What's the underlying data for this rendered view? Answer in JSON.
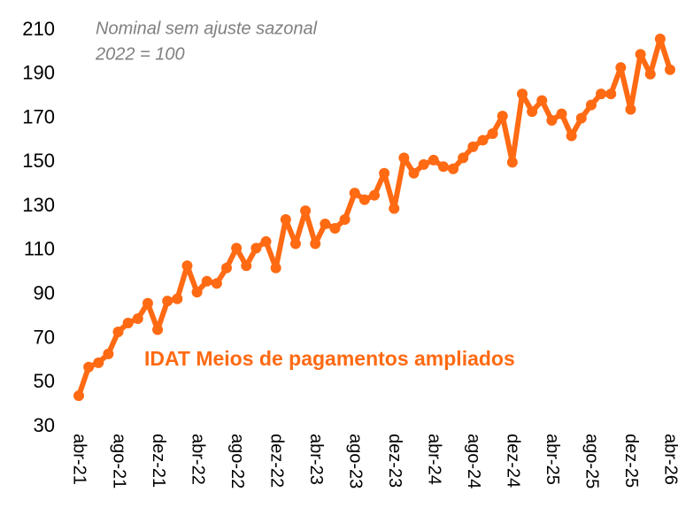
{
  "chart_data": {
    "type": "line",
    "annotations": [
      "Nominal sem ajuste sazonal",
      "2022 = 100"
    ],
    "categories": [
      "abr-21",
      null,
      null,
      null,
      "ago-21",
      null,
      null,
      null,
      "dez-21",
      null,
      null,
      null,
      "abr-22",
      null,
      null,
      null,
      "ago-22",
      null,
      null,
      null,
      "dez-22",
      null,
      null,
      null,
      "abr-23",
      null,
      null,
      null,
      "ago-23",
      null,
      null,
      null,
      "dez-23",
      null,
      null,
      null,
      "abr-24",
      null,
      null,
      null,
      "ago-24",
      null,
      null,
      null,
      "dez-24",
      null,
      null,
      null,
      "abr-25",
      null,
      null,
      null,
      "ago-25",
      null,
      null,
      null,
      "dez-25",
      null,
      null,
      null,
      "abr-26"
    ],
    "series": [
      {
        "name": "IDAT Meios de pagamentos ampliados",
        "color": "#ff6a13",
        "values": [
          44,
          57,
          59,
          63,
          73,
          77,
          79,
          86,
          74,
          87,
          88,
          103,
          91,
          96,
          95,
          102,
          111,
          103,
          111,
          114,
          102,
          124,
          113,
          128,
          113,
          122,
          120,
          124,
          136,
          133,
          135,
          145,
          129,
          152,
          145,
          149,
          151,
          148,
          147,
          152,
          157,
          160,
          163,
          171,
          150,
          181,
          173,
          178,
          169,
          172,
          162,
          170,
          176,
          181,
          181,
          193,
          174,
          199,
          190,
          206,
          192
        ]
      }
    ],
    "ylim": [
      30,
      210
    ],
    "yticks": [
      30,
      50,
      70,
      90,
      110,
      130,
      150,
      170,
      190,
      210
    ],
    "grid": false
  }
}
